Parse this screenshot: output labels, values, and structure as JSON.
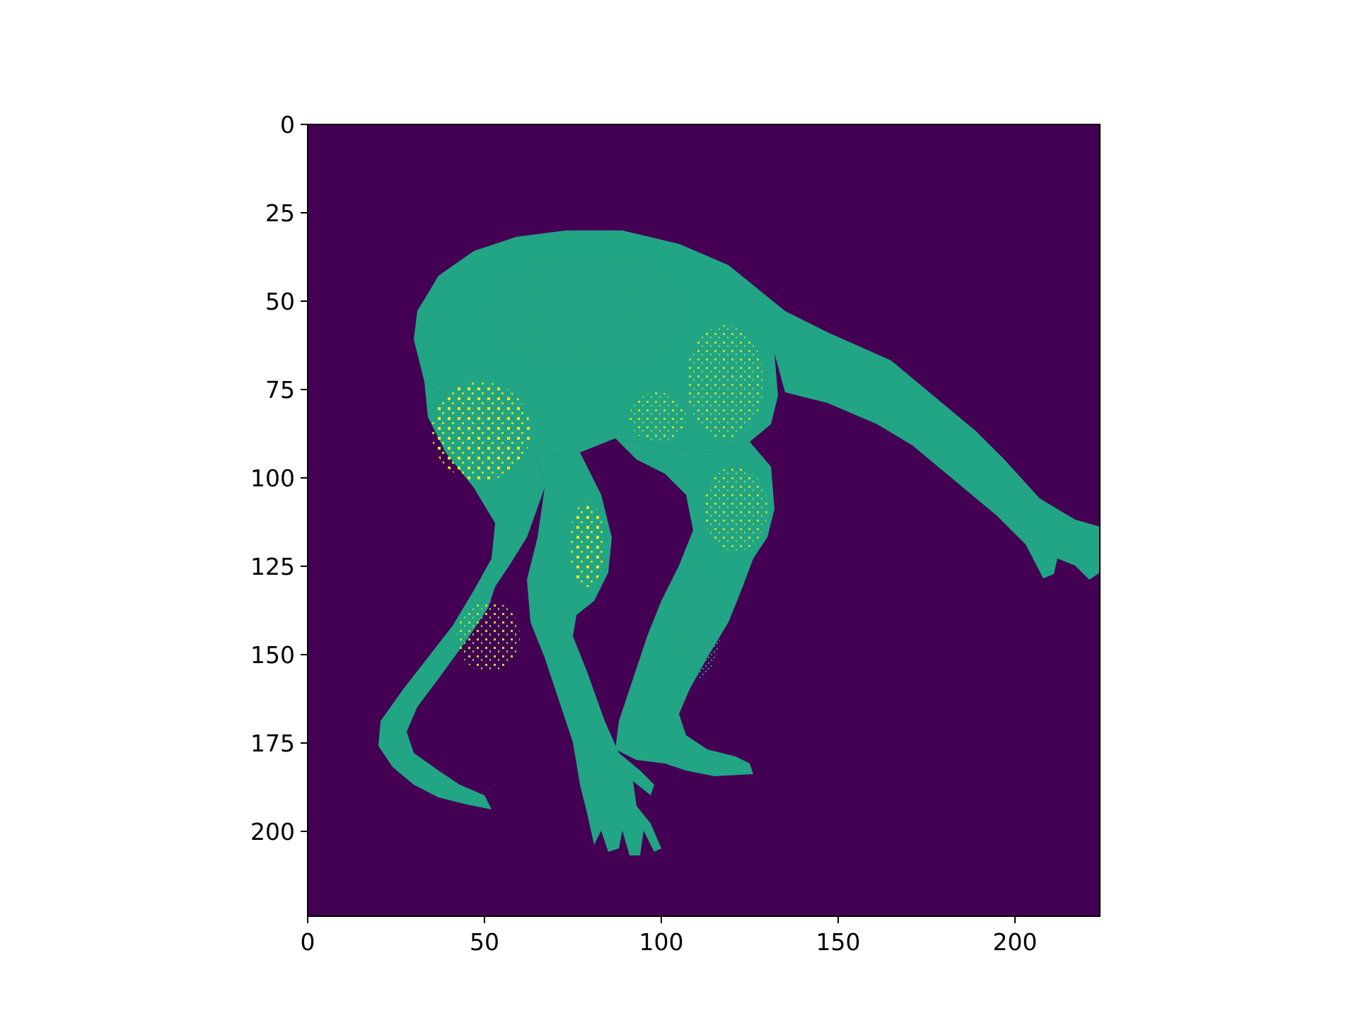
{
  "chart_data": {
    "type": "heatmap",
    "title": "",
    "xlabel": "",
    "ylabel": "",
    "xlim": [
      0,
      224
    ],
    "ylim": [
      224,
      0
    ],
    "image_shape": [
      224,
      224
    ],
    "colormap": "viridis",
    "grid": false,
    "legend": "none",
    "x_ticks": [
      {
        "value": 0,
        "label": "0"
      },
      {
        "value": 50,
        "label": "50"
      },
      {
        "value": 100,
        "label": "100"
      },
      {
        "value": 150,
        "label": "150"
      },
      {
        "value": 200,
        "label": "200"
      }
    ],
    "y_ticks": [
      {
        "value": 0,
        "label": "0"
      },
      {
        "value": 25,
        "label": "25"
      },
      {
        "value": 50,
        "label": "50"
      },
      {
        "value": 75,
        "label": "75"
      },
      {
        "value": 100,
        "label": "100"
      },
      {
        "value": 125,
        "label": "125"
      },
      {
        "value": 150,
        "label": "150"
      },
      {
        "value": 175,
        "label": "175"
      },
      {
        "value": 200,
        "label": "200"
      }
    ],
    "background_value_color": "#440154",
    "foreground_value_color": "#21a585",
    "highlight_value_color": "#bddf26",
    "bright_value_color": "#fde725",
    "subject": "human figure silhouette, bent forward"
  }
}
